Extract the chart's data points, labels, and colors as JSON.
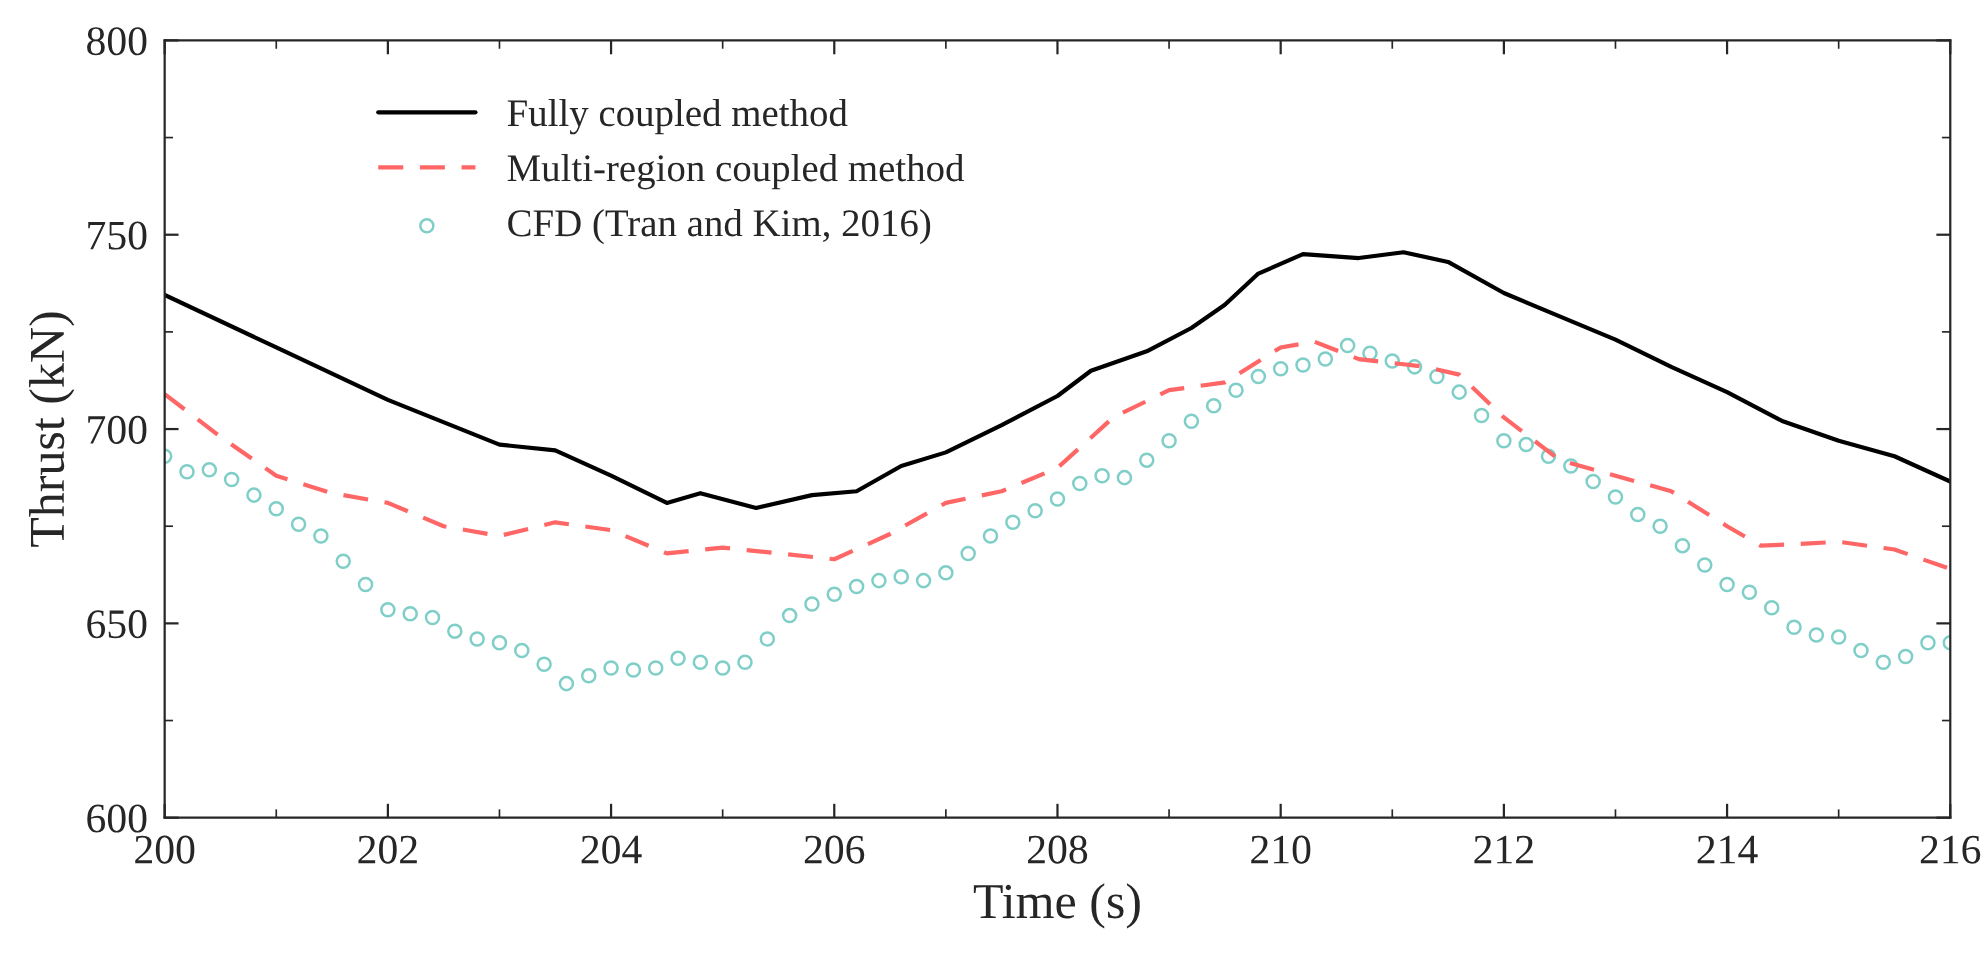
{
  "chart_data": {
    "type": "line",
    "xlabel": "Time (s)",
    "ylabel": "Thrust (kN)",
    "xlim": [
      200,
      216
    ],
    "xticks": [
      200,
      202,
      204,
      206,
      208,
      210,
      212,
      214,
      216
    ],
    "ylim": [
      600,
      800
    ],
    "yticks": [
      600,
      650,
      700,
      750,
      800
    ],
    "grid": false,
    "legend": "top left",
    "series": [
      {
        "name": "Fully coupled method",
        "color": "#000000",
        "line_style": "solid",
        "marker": "none",
        "x": [
          200,
          201,
          202,
          203,
          203.5,
          204,
          204.5,
          204.8,
          205.3,
          205.8,
          206.2,
          206.6,
          207,
          207.5,
          208,
          208.3,
          208.8,
          209.2,
          209.5,
          209.8,
          210.2,
          210.7,
          211.1,
          211.5,
          212,
          212.5,
          213,
          213.5,
          214,
          214.5,
          215,
          215.5,
          216
        ],
        "values": [
          734.5,
          721,
          707.5,
          696,
          694.5,
          688,
          681,
          683.5,
          679.7,
          683,
          684,
          690.5,
          694,
          701,
          708.5,
          715,
          720,
          726,
          732,
          740,
          745,
          744,
          745.5,
          743,
          735,
          729,
          723,
          716,
          709.5,
          702,
          697,
          693,
          686.5
        ]
      },
      {
        "name": "Multi-region coupled method",
        "color": "#ff6666",
        "line_style": "dashed",
        "marker": "none",
        "x": [
          200,
          200.5,
          201,
          201.5,
          202,
          202.5,
          203,
          203.5,
          204,
          204.5,
          205,
          205.5,
          206,
          206.5,
          207,
          207.5,
          208,
          208.5,
          209,
          209.5,
          210,
          210.3,
          210.7,
          211.3,
          211.6,
          212,
          212.5,
          213,
          213.5,
          214,
          214.3,
          214.7,
          215,
          215.5,
          216
        ],
        "values": [
          709,
          698,
          688,
          683.5,
          681,
          675,
          672.5,
          676,
          674,
          668,
          669.5,
          668,
          666.5,
          673,
          681,
          684,
          690,
          703,
          710,
          712,
          721,
          722.5,
          718,
          716,
          714,
          703,
          692,
          688,
          684,
          675,
          670,
          670.5,
          671,
          669,
          664
        ]
      },
      {
        "name": "CFD (Tran and Kim, 2016)",
        "type": "scatter",
        "color": "#7fcfc8",
        "marker": "circle",
        "x": [
          200,
          200.2,
          200.4,
          200.6,
          200.8,
          201,
          201.2,
          201.4,
          201.6,
          201.8,
          202,
          202.2,
          202.4,
          202.6,
          202.8,
          203,
          203.2,
          203.4,
          203.6,
          203.8,
          204,
          204.2,
          204.4,
          204.6,
          204.8,
          205,
          205.2,
          205.4,
          205.6,
          205.8,
          206,
          206.2,
          206.4,
          206.6,
          206.8,
          207,
          207.2,
          207.4,
          207.6,
          207.8,
          208,
          208.2,
          208.4,
          208.6,
          208.8,
          209,
          209.2,
          209.4,
          209.6,
          209.8,
          210,
          210.2,
          210.4,
          210.6,
          210.8,
          211,
          211.2,
          211.4,
          211.6,
          211.8,
          212,
          212.2,
          212.4,
          212.6,
          212.8,
          213,
          213.2,
          213.4,
          213.6,
          213.8,
          214,
          214.2,
          214.4,
          214.6,
          214.8,
          215,
          215.2,
          215.4,
          215.6,
          215.8,
          216
        ],
        "values": [
          693,
          689,
          689.5,
          687,
          683,
          679.5,
          675.5,
          672.5,
          666,
          660,
          653.5,
          652.5,
          651.5,
          648,
          646,
          645,
          643,
          639.5,
          634.5,
          636.5,
          638.5,
          638,
          638.5,
          641,
          640,
          638.5,
          640,
          646,
          652,
          655,
          657.5,
          659.5,
          661,
          662,
          661,
          663,
          668,
          672.5,
          676,
          679,
          682,
          686,
          688,
          687.5,
          692,
          697,
          702,
          706,
          710,
          713.5,
          715.5,
          716.5,
          718,
          721.5,
          719.5,
          717.5,
          716,
          713.5,
          709.5,
          703.5,
          697,
          696,
          693,
          690.5,
          686.5,
          682.5,
          678,
          675,
          670,
          665,
          660,
          658,
          654,
          649,
          647,
          646.5,
          643,
          640,
          641.5,
          645,
          645
        ]
      }
    ]
  }
}
